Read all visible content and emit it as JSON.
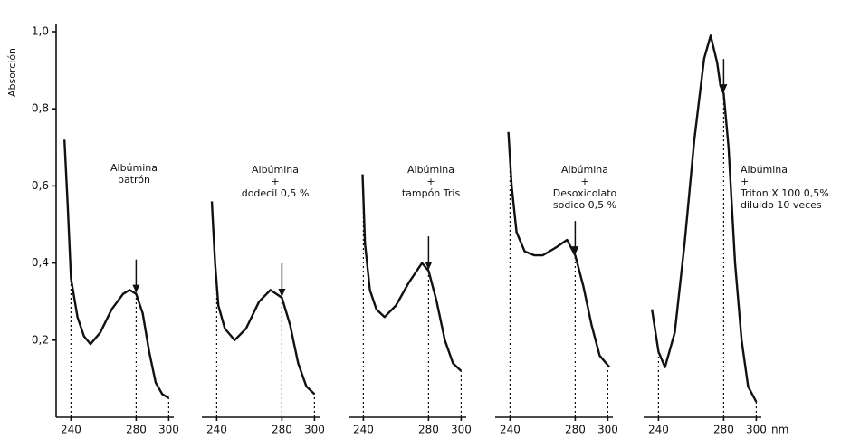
{
  "chart_data": {
    "type": "line",
    "y_label": "Absorción",
    "x_unit": "nm",
    "ylim": [
      0,
      1.0
    ],
    "yticks": [
      {
        "value": 0.2,
        "label": "0,2"
      },
      {
        "value": 0.4,
        "label": "0,4"
      },
      {
        "value": 0.6,
        "label": "0,6"
      },
      {
        "value": 0.8,
        "label": "0,8"
      },
      {
        "value": 1.0,
        "label": "1,0"
      }
    ],
    "xlim": [
      232,
      302
    ],
    "xticks": [
      240,
      280,
      300
    ],
    "color": "#111111",
    "series": [
      {
        "name": [
          "Albúmina",
          "patrón"
        ],
        "x": [
          236,
          238,
          240,
          244,
          248,
          252,
          258,
          265,
          272,
          276,
          280,
          284,
          288,
          292,
          296,
          300
        ],
        "values": [
          0.72,
          0.55,
          0.36,
          0.26,
          0.21,
          0.19,
          0.22,
          0.28,
          0.32,
          0.33,
          0.32,
          0.27,
          0.17,
          0.09,
          0.06,
          0.05
        ]
      },
      {
        "name": [
          "Albúmina",
          "+",
          "dodecil 0,5 %"
        ],
        "x": [
          237,
          239,
          241,
          245,
          251,
          258,
          266,
          273,
          280,
          285,
          290,
          295,
          300
        ],
        "values": [
          0.56,
          0.4,
          0.29,
          0.23,
          0.2,
          0.23,
          0.3,
          0.33,
          0.31,
          0.24,
          0.14,
          0.08,
          0.06
        ]
      },
      {
        "name": [
          "Albúmina",
          "+",
          "tampón Tris"
        ],
        "x": [
          239.5,
          241,
          244,
          248,
          253,
          260,
          268,
          276,
          280,
          285,
          290,
          295,
          300
        ],
        "values": [
          0.63,
          0.45,
          0.33,
          0.28,
          0.26,
          0.29,
          0.35,
          0.4,
          0.38,
          0.3,
          0.2,
          0.14,
          0.12
        ]
      },
      {
        "name": [
          "Albúmina",
          "+",
          "Desoxicolato",
          "sodico 0,5 %"
        ],
        "x": [
          239,
          241,
          244,
          249,
          255,
          260,
          268,
          275,
          280,
          285,
          290,
          295,
          301
        ],
        "values": [
          0.74,
          0.6,
          0.48,
          0.43,
          0.42,
          0.42,
          0.44,
          0.46,
          0.42,
          0.34,
          0.24,
          0.16,
          0.13
        ]
      },
      {
        "name": [
          "Albúmina",
          "+",
          "Triton X 100 0,5%",
          "diluido 10 veces"
        ],
        "x": [
          236,
          240,
          244,
          250,
          256,
          262,
          268,
          272,
          276,
          278,
          280,
          283,
          287,
          291,
          295,
          300
        ],
        "values": [
          0.28,
          0.17,
          0.13,
          0.22,
          0.45,
          0.72,
          0.93,
          0.99,
          0.92,
          0.86,
          0.84,
          0.7,
          0.4,
          0.2,
          0.08,
          0.04
        ]
      }
    ]
  }
}
